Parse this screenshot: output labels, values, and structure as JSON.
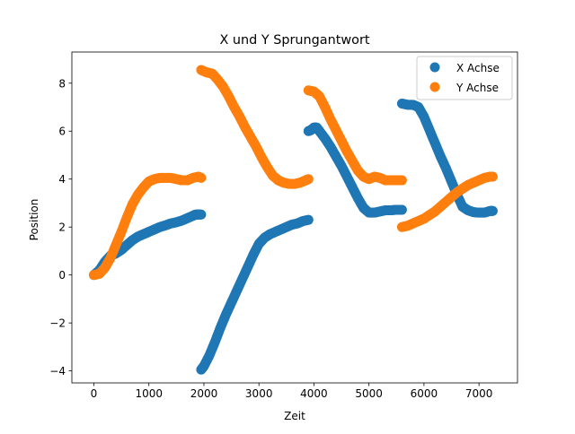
{
  "chart_data": {
    "type": "scatter",
    "title": "X und Y Sprungantwort",
    "xlabel": "Zeit",
    "ylabel": "Position",
    "xlim": [
      -400,
      7700
    ],
    "ylim": [
      -4.5,
      9.3
    ],
    "xticks": [
      0,
      1000,
      2000,
      3000,
      4000,
      5000,
      6000,
      7000
    ],
    "yticks": [
      -4,
      -2,
      0,
      2,
      4,
      6,
      8
    ],
    "grid": false,
    "legend_position": "top-right",
    "series": [
      {
        "name": "X Achse",
        "color": "#1f77b4",
        "segments": [
          [
            [
              0,
              0
            ],
            [
              100,
              0.2
            ],
            [
              200,
              0.55
            ],
            [
              300,
              0.8
            ],
            [
              400,
              0.9
            ],
            [
              500,
              1.05
            ],
            [
              600,
              1.25
            ],
            [
              700,
              1.45
            ],
            [
              800,
              1.6
            ],
            [
              900,
              1.7
            ],
            [
              1000,
              1.8
            ],
            [
              1100,
              1.9
            ],
            [
              1200,
              2.0
            ],
            [
              1300,
              2.07
            ],
            [
              1400,
              2.15
            ],
            [
              1500,
              2.2
            ],
            [
              1600,
              2.27
            ],
            [
              1700,
              2.37
            ],
            [
              1800,
              2.47
            ],
            [
              1850,
              2.52
            ],
            [
              1900,
              2.52
            ],
            [
              1950,
              2.52
            ]
          ],
          [
            [
              1950,
              -3.95
            ],
            [
              2000,
              -3.8
            ],
            [
              2100,
              -3.35
            ],
            [
              2200,
              -2.8
            ],
            [
              2300,
              -2.2
            ],
            [
              2400,
              -1.65
            ],
            [
              2500,
              -1.15
            ],
            [
              2600,
              -0.65
            ],
            [
              2700,
              -0.15
            ],
            [
              2800,
              0.35
            ],
            [
              2900,
              0.85
            ],
            [
              3000,
              1.3
            ],
            [
              3100,
              1.55
            ],
            [
              3200,
              1.7
            ],
            [
              3300,
              1.8
            ],
            [
              3400,
              1.9
            ],
            [
              3500,
              2.0
            ],
            [
              3600,
              2.1
            ],
            [
              3700,
              2.15
            ],
            [
              3800,
              2.25
            ],
            [
              3900,
              2.3
            ]
          ],
          [
            [
              3900,
              6.0
            ],
            [
              3950,
              6.05
            ],
            [
              4000,
              6.15
            ],
            [
              4050,
              6.15
            ],
            [
              4100,
              6.0
            ],
            [
              4200,
              5.7
            ],
            [
              4300,
              5.35
            ],
            [
              4400,
              4.95
            ],
            [
              4500,
              4.55
            ],
            [
              4600,
              4.1
            ],
            [
              4700,
              3.65
            ],
            [
              4800,
              3.2
            ],
            [
              4900,
              2.8
            ],
            [
              5000,
              2.6
            ],
            [
              5100,
              2.6
            ],
            [
              5200,
              2.65
            ],
            [
              5300,
              2.7
            ],
            [
              5400,
              2.7
            ],
            [
              5500,
              2.72
            ],
            [
              5600,
              2.72
            ]
          ],
          [
            [
              5600,
              7.15
            ],
            [
              5700,
              7.1
            ],
            [
              5800,
              7.1
            ],
            [
              5900,
              7.0
            ],
            [
              6000,
              6.6
            ],
            [
              6100,
              6.05
            ],
            [
              6200,
              5.5
            ],
            [
              6300,
              4.95
            ],
            [
              6400,
              4.45
            ],
            [
              6500,
              3.9
            ],
            [
              6600,
              3.35
            ],
            [
              6700,
              2.85
            ],
            [
              6800,
              2.7
            ],
            [
              6900,
              2.62
            ],
            [
              7000,
              2.6
            ],
            [
              7100,
              2.6
            ],
            [
              7200,
              2.67
            ],
            [
              7250,
              2.67
            ]
          ]
        ]
      },
      {
        "name": "Y Achse",
        "color": "#ff7f0e",
        "segments": [
          [
            [
              0,
              0
            ],
            [
              100,
              0.05
            ],
            [
              200,
              0.3
            ],
            [
              300,
              0.7
            ],
            [
              400,
              1.25
            ],
            [
              500,
              1.8
            ],
            [
              600,
              2.4
            ],
            [
              700,
              2.95
            ],
            [
              800,
              3.35
            ],
            [
              900,
              3.65
            ],
            [
              1000,
              3.9
            ],
            [
              1100,
              4.0
            ],
            [
              1200,
              4.05
            ],
            [
              1300,
              4.05
            ],
            [
              1400,
              4.05
            ],
            [
              1500,
              4.0
            ],
            [
              1600,
              3.95
            ],
            [
              1700,
              3.95
            ],
            [
              1800,
              4.05
            ],
            [
              1900,
              4.1
            ],
            [
              1950,
              4.05
            ]
          ],
          [
            [
              1950,
              8.55
            ],
            [
              2050,
              8.45
            ],
            [
              2150,
              8.4
            ],
            [
              2250,
              8.15
            ],
            [
              2350,
              7.85
            ],
            [
              2450,
              7.45
            ],
            [
              2550,
              7.0
            ],
            [
              2650,
              6.6
            ],
            [
              2750,
              6.15
            ],
            [
              2850,
              5.75
            ],
            [
              2950,
              5.35
            ],
            [
              3050,
              4.9
            ],
            [
              3150,
              4.5
            ],
            [
              3250,
              4.15
            ],
            [
              3350,
              3.95
            ],
            [
              3450,
              3.85
            ],
            [
              3550,
              3.8
            ],
            [
              3650,
              3.8
            ],
            [
              3750,
              3.85
            ],
            [
              3850,
              3.95
            ],
            [
              3900,
              4.0
            ]
          ],
          [
            [
              3900,
              7.7
            ],
            [
              4000,
              7.65
            ],
            [
              4100,
              7.45
            ],
            [
              4200,
              7.0
            ],
            [
              4300,
              6.5
            ],
            [
              4400,
              6.05
            ],
            [
              4500,
              5.6
            ],
            [
              4600,
              5.15
            ],
            [
              4700,
              4.75
            ],
            [
              4800,
              4.35
            ],
            [
              4900,
              4.1
            ],
            [
              5000,
              4.0
            ],
            [
              5100,
              4.1
            ],
            [
              5200,
              4.05
            ],
            [
              5300,
              3.95
            ],
            [
              5400,
              3.95
            ],
            [
              5500,
              3.95
            ],
            [
              5600,
              3.95
            ]
          ],
          [
            [
              5600,
              2.0
            ],
            [
              5700,
              2.05
            ],
            [
              5800,
              2.15
            ],
            [
              5900,
              2.25
            ],
            [
              6000,
              2.35
            ],
            [
              6100,
              2.5
            ],
            [
              6200,
              2.65
            ],
            [
              6300,
              2.85
            ],
            [
              6400,
              3.05
            ],
            [
              6500,
              3.25
            ],
            [
              6600,
              3.45
            ],
            [
              6700,
              3.6
            ],
            [
              6800,
              3.75
            ],
            [
              6900,
              3.85
            ],
            [
              7000,
              3.95
            ],
            [
              7100,
              4.05
            ],
            [
              7200,
              4.1
            ],
            [
              7250,
              4.1
            ]
          ]
        ]
      }
    ]
  }
}
